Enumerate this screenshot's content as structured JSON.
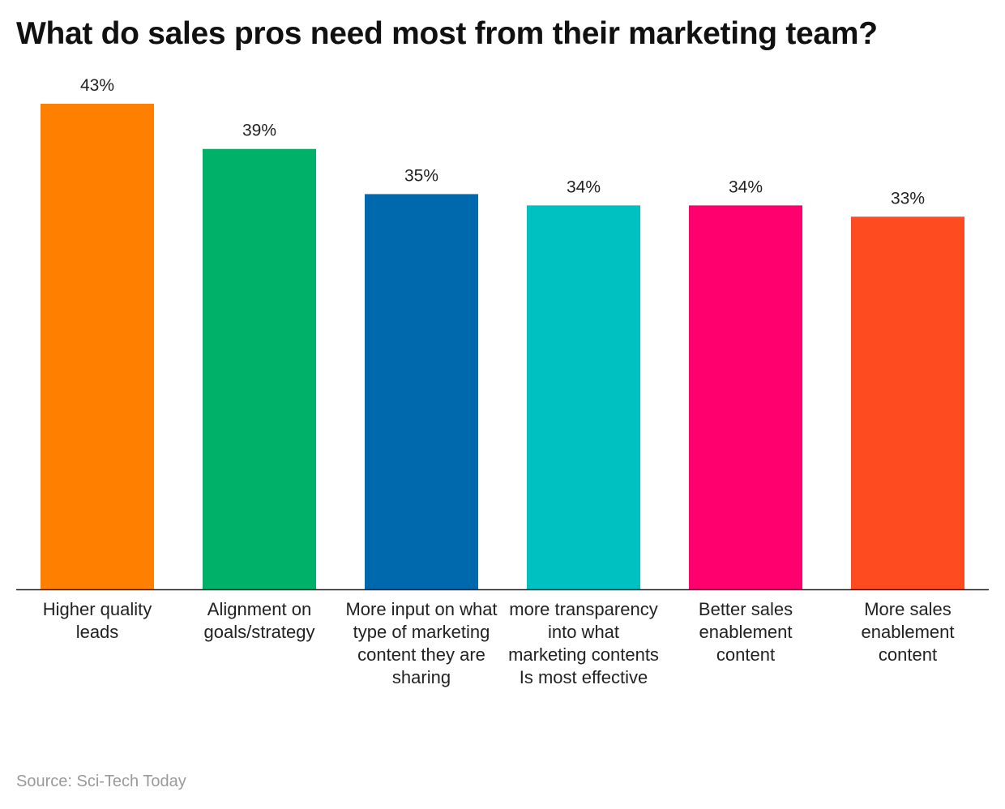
{
  "chart_data": {
    "type": "bar",
    "title": "What do sales pros need most from their marketing team?",
    "categories": [
      "Higher quality leads",
      "Alignment on goals/strategy",
      "More input on what type of marketing content they are sharing",
      "more transparency into what marketing contents Is most effective",
      "Better sales enablement content",
      "More sales enablement content"
    ],
    "values": [
      43,
      39,
      35,
      34,
      34,
      33
    ],
    "value_labels": [
      "43%",
      "39%",
      "35%",
      "34%",
      "34%",
      "33%"
    ],
    "colors": [
      "#FF7F00",
      "#00B16A",
      "#0069AD",
      "#00C1C1",
      "#FF006E",
      "#FF4B1F"
    ],
    "xlabel": "",
    "ylabel": "",
    "ylim": [
      0,
      43
    ],
    "grid": false,
    "legend": "none"
  },
  "source": "Source: Sci-Tech Today"
}
